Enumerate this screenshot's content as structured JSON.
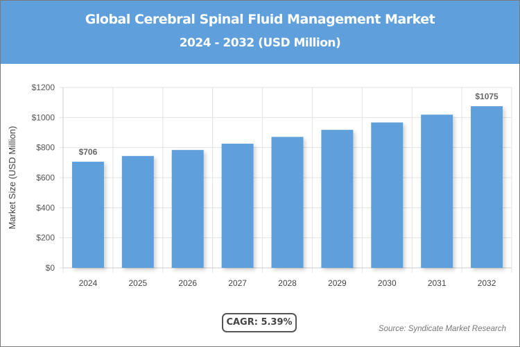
{
  "header": {
    "title": "Global Cerebral Spinal Fluid Management Market",
    "subtitle": "2024 - 2032 (USD Million)"
  },
  "chart_data": {
    "type": "bar",
    "title": "Global Cerebral Spinal Fluid Management Market",
    "subtitle": "2024 - 2032 (USD Million)",
    "categories": [
      "2024",
      "2025",
      "2026",
      "2027",
      "2028",
      "2029",
      "2030",
      "2031",
      "2032"
    ],
    "values": [
      706,
      744,
      784,
      826,
      871,
      918,
      967,
      1019,
      1075
    ],
    "data_labels": {
      "0": "$706",
      "8": "$1075"
    },
    "ylabel": "Market Size (USD Million)",
    "xlabel": "",
    "ylim": [
      0,
      1200
    ],
    "yticks": [
      0,
      200,
      400,
      600,
      800,
      1000,
      1200
    ],
    "ytick_labels": [
      "$0",
      "$200",
      "$400",
      "$600",
      "$800",
      "$1000",
      "$1200"
    ],
    "grid": true,
    "bar_color": "#5fa0dc"
  },
  "footer": {
    "cagr": "CAGR: 5.39%",
    "source": "Source: Syndicate Market Research"
  }
}
